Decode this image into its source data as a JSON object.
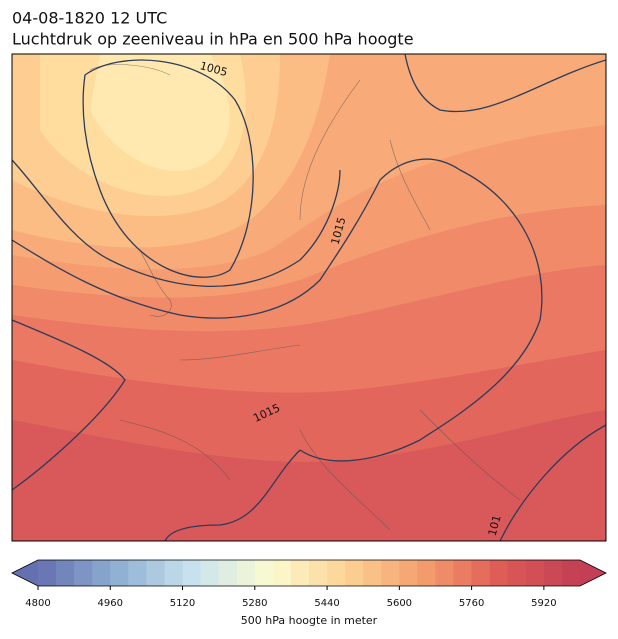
{
  "title_lines": [
    "04-08-1820 12 UTC",
    "Luchtdruk op zeeniveau in hPa en 500 hPa hoogte"
  ],
  "isobar_labels": [
    "1005",
    "1015",
    "1015",
    "101"
  ],
  "colorbar": {
    "label": "500 hPa hoogte in meter",
    "range": [
      4800,
      6000
    ],
    "step": 40,
    "ticks": [
      4800,
      4960,
      5120,
      5280,
      5440,
      5600,
      5760,
      5920
    ],
    "colors": [
      "#6570b0",
      "#8eaed2",
      "#c8e3ee",
      "#fbfbd0",
      "#fdd293",
      "#f49c6c",
      "#dd5a56",
      "#c23f55"
    ]
  }
}
